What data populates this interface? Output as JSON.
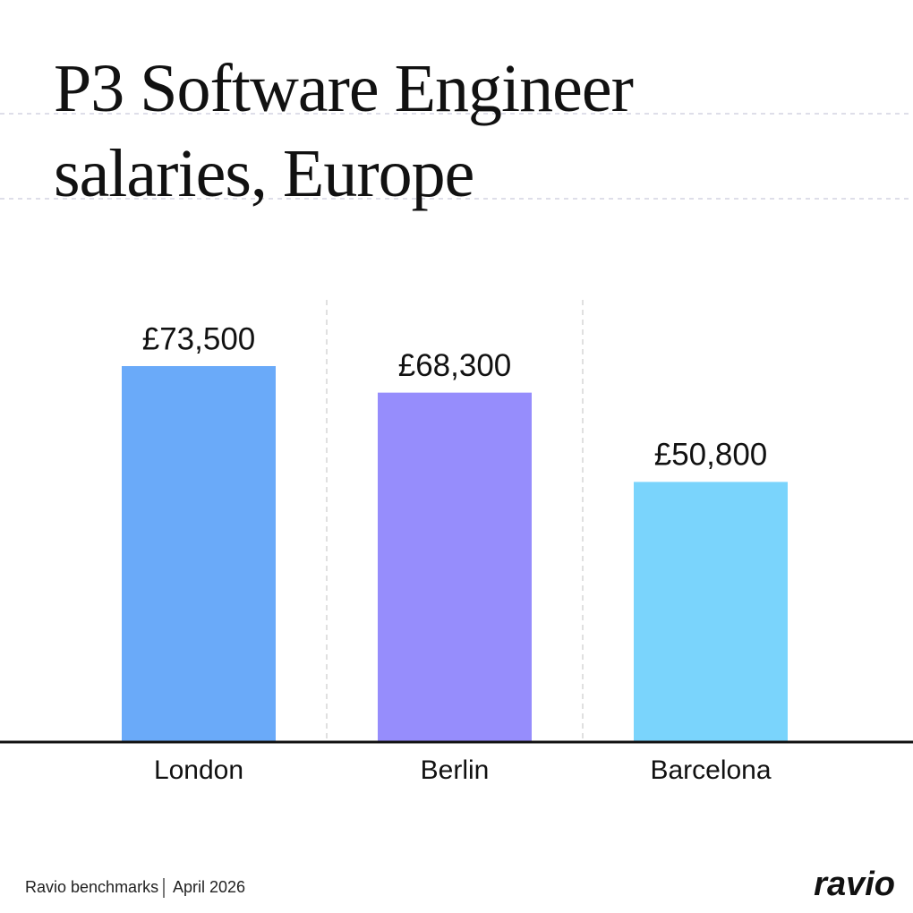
{
  "chart_data": {
    "type": "bar",
    "title": "P3 Software Engineer salaries, Europe",
    "categories": [
      "London",
      "Berlin",
      "Barcelona"
    ],
    "values": [
      73500,
      68300,
      50800
    ],
    "value_labels": [
      "£73,500",
      "£68,300",
      "£50,800"
    ],
    "colors": [
      "#6aaaf9",
      "#968dfc",
      "#7ad4fc"
    ]
  },
  "footer": {
    "source": "Ravio benchmarks",
    "date": "April 2026",
    "logo": "ravio"
  }
}
